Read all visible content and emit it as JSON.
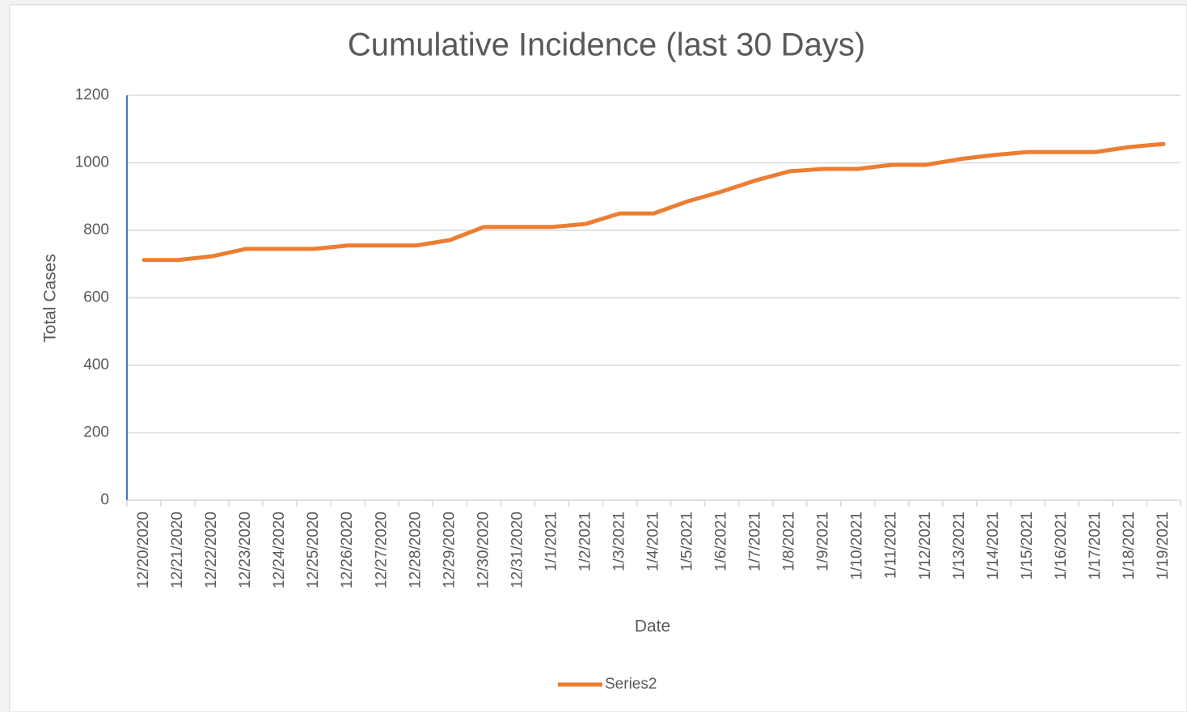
{
  "chart_data": {
    "type": "line",
    "title": "Cumulative Incidence (last 30 Days)",
    "xlabel": "Date",
    "ylabel": "Total Cases",
    "categories": [
      "12/20/2020",
      "12/21/2020",
      "12/22/2020",
      "12/23/2020",
      "12/24/2020",
      "12/25/2020",
      "12/26/2020",
      "12/27/2020",
      "12/28/2020",
      "12/29/2020",
      "12/30/2020",
      "12/31/2020",
      "1/1/2021",
      "1/2/2021",
      "1/3/2021",
      "1/4/2021",
      "1/5/2021",
      "1/6/2021",
      "1/7/2021",
      "1/8/2021",
      "1/9/2021",
      "1/10/2021",
      "1/11/2021",
      "1/12/2021",
      "1/13/2021",
      "1/14/2021",
      "1/15/2021",
      "1/16/2021",
      "1/17/2021",
      "1/18/2021",
      "1/19/2021"
    ],
    "series": [
      {
        "name": "Series2",
        "color": "#ed7d31",
        "values": [
          712,
          712,
          723,
          745,
          745,
          745,
          755,
          755,
          755,
          771,
          810,
          810,
          810,
          819,
          850,
          850,
          886,
          915,
          948,
          975,
          982,
          982,
          994,
          994,
          1011,
          1023,
          1032,
          1032,
          1032,
          1047,
          1056
        ]
      }
    ],
    "ylim": [
      0,
      1200
    ],
    "yticks": [
      0,
      200,
      400,
      600,
      800,
      1000,
      1200
    ],
    "grid": true,
    "legend": "bottom"
  }
}
